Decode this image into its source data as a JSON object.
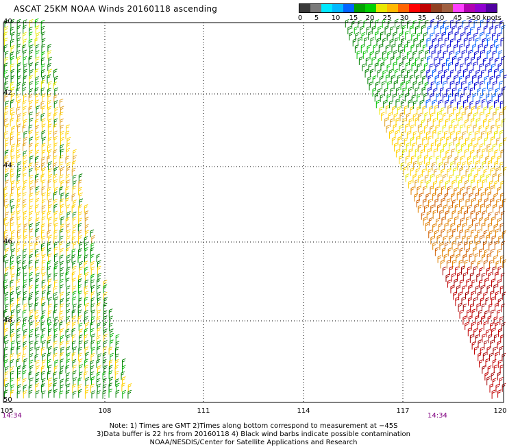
{
  "title": "ASCAT 25KM NOAA Winds 20160118 ascending",
  "scale": {
    "colors": [
      "#3a3a3a",
      "#7a7a7a",
      "#00e8ff",
      "#00b8ff",
      "#0064ff",
      "#00a000",
      "#00d000",
      "#e8e800",
      "#ffb800",
      "#ff6400",
      "#ff0000",
      "#c00000",
      "#904020",
      "#a06040",
      "#ff40ff",
      "#b000b0",
      "#9000d0",
      "#5000a0"
    ],
    "labels": [
      "0",
      "5",
      "10",
      "15",
      "20",
      "25",
      "30",
      "35",
      "40",
      "45",
      ">50 knots"
    ]
  },
  "lat_labels": [
    "40",
    "42",
    "44",
    "46",
    "48",
    "50"
  ],
  "lon_labels": [
    "105",
    "108",
    "111",
    "114",
    "117",
    "120"
  ],
  "times": [
    "14:34",
    "14:34"
  ],
  "notes": [
    "Note: 1) Times are GMT 2)Times along bottom correspond to measurement at −45S",
    "3)Data buffer is 22 hrs from 20160118 4) Black wind barbs indicate possible contamination",
    "NOAA/NESDIS/Center for Satellite Applications and Research"
  ]
}
